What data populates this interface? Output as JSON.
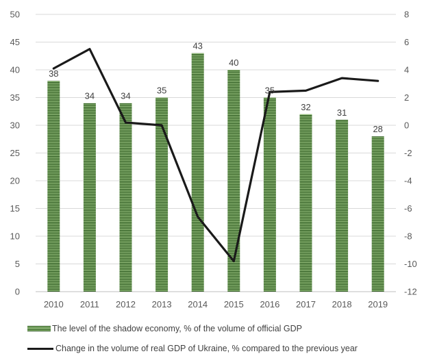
{
  "chart_data": {
    "type": "bar+line",
    "categories": [
      "2010",
      "2011",
      "2012",
      "2013",
      "2014",
      "2015",
      "2016",
      "2017",
      "2018",
      "2019"
    ],
    "series": [
      {
        "name": "The level of the shadow economy, % of the volume of official GDP",
        "type": "bar",
        "axis": "left",
        "values": [
          38,
          34,
          34,
          35,
          43,
          40,
          35,
          32,
          31,
          28
        ],
        "color": "#a8d08d",
        "pattern_color": "#1d4a12"
      },
      {
        "name": "Change in the volume of real GDP of Ukraine, % compared to the previous year",
        "type": "line",
        "axis": "right",
        "values": [
          4.1,
          5.5,
          0.2,
          0.0,
          -6.6,
          -9.8,
          2.4,
          2.5,
          3.4,
          3.2
        ],
        "color": "#1a1a1a"
      }
    ],
    "y_left": {
      "min": 0,
      "max": 50,
      "ticks": [
        "0",
        "5",
        "10",
        "15",
        "20",
        "25",
        "30",
        "35",
        "40",
        "45",
        "50"
      ]
    },
    "y_right": {
      "min": -12,
      "max": 8,
      "ticks": [
        "-12",
        "-10",
        "-8",
        "-6",
        "-4",
        "-2",
        "0",
        "2",
        "4",
        "6",
        "8"
      ]
    },
    "grid": true,
    "legend_position": "bottom",
    "title": "",
    "xlabel": "",
    "ylabel": ""
  }
}
